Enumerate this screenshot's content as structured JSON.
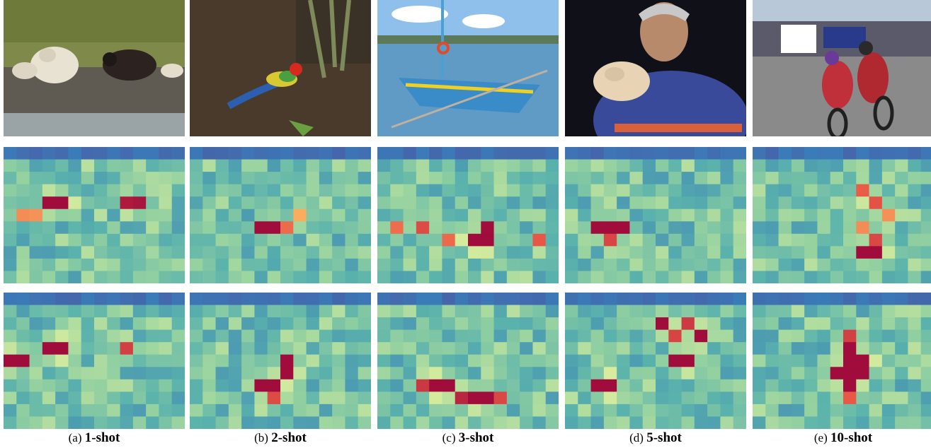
{
  "figure": {
    "panels": [
      {
        "letter": "(a)",
        "shot": "1-shot",
        "scene": "sheep on a rocky riverbank",
        "hot1": [
          [
            4,
            4,
            1.0
          ],
          [
            4,
            3,
            0.8
          ],
          [
            4,
            9,
            0.8
          ],
          [
            4,
            10,
            0.75
          ],
          [
            5,
            1,
            0.6
          ],
          [
            5,
            2,
            0.6
          ]
        ],
        "hot2": [
          [
            4,
            4,
            1.0
          ],
          [
            4,
            3,
            0.95
          ],
          [
            4,
            9,
            0.85
          ],
          [
            5,
            1,
            0.9
          ],
          [
            5,
            0,
            0.95
          ]
        ]
      },
      {
        "letter": "(b)",
        "shot": "2-shot",
        "scene": "rainbow lorikeet on forest floor",
        "hot1": [
          [
            6,
            6,
            1.0
          ],
          [
            6,
            5,
            0.7
          ],
          [
            6,
            7,
            0.6
          ],
          [
            5,
            8,
            0.55
          ]
        ],
        "hot2": [
          [
            7,
            6,
            1.0
          ],
          [
            6,
            7,
            0.9
          ],
          [
            5,
            7,
            0.85
          ],
          [
            7,
            5,
            0.8
          ],
          [
            8,
            6,
            0.7
          ]
        ]
      },
      {
        "letter": "(c)",
        "shot": "3-shot",
        "scene": "outrigger boat on water",
        "hot1": [
          [
            7,
            7,
            1.0
          ],
          [
            7,
            8,
            0.95
          ],
          [
            6,
            3,
            0.85
          ],
          [
            6,
            1,
            0.7
          ],
          [
            7,
            5,
            0.7
          ],
          [
            6,
            8,
            0.7
          ],
          [
            7,
            12,
            0.6
          ]
        ],
        "hot2": [
          [
            7,
            4,
            0.95
          ],
          [
            7,
            5,
            0.95
          ],
          [
            8,
            6,
            0.9
          ],
          [
            8,
            7,
            0.9
          ],
          [
            8,
            8,
            0.85
          ],
          [
            7,
            3,
            0.7
          ],
          [
            8,
            9,
            0.7
          ]
        ]
      },
      {
        "letter": "(d)",
        "shot": "5-shot",
        "scene": "man holding a small dog",
        "hot1": [
          [
            6,
            3,
            1.0
          ],
          [
            6,
            2,
            0.85
          ],
          [
            6,
            4,
            0.75
          ],
          [
            7,
            3,
            0.65
          ]
        ],
        "hot2": [
          [
            7,
            3,
            1.0
          ],
          [
            5,
            8,
            0.95
          ],
          [
            2,
            9,
            0.85
          ],
          [
            3,
            10,
            0.9
          ],
          [
            5,
            9,
            0.85
          ],
          [
            7,
            2,
            0.75
          ],
          [
            2,
            7,
            0.8
          ],
          [
            3,
            8,
            0.75
          ]
        ]
      },
      {
        "letter": "(e)",
        "shot": "10-shot",
        "scene": "motorcycle racers on track",
        "hot1": [
          [
            8,
            8,
            1.0
          ],
          [
            8,
            9,
            0.95
          ],
          [
            4,
            9,
            0.9
          ],
          [
            3,
            8,
            0.8
          ],
          [
            6,
            8,
            0.75
          ],
          [
            7,
            9,
            0.7
          ],
          [
            5,
            10,
            0.6
          ]
        ],
        "hot2": [
          [
            5,
            7,
            1.0
          ],
          [
            6,
            7,
            0.95
          ],
          [
            5,
            8,
            0.95
          ],
          [
            6,
            6,
            0.85
          ],
          [
            4,
            7,
            0.85
          ],
          [
            7,
            7,
            0.8
          ],
          [
            6,
            8,
            0.8
          ],
          [
            3,
            7,
            0.75
          ],
          [
            8,
            7,
            0.7
          ]
        ]
      }
    ]
  }
}
